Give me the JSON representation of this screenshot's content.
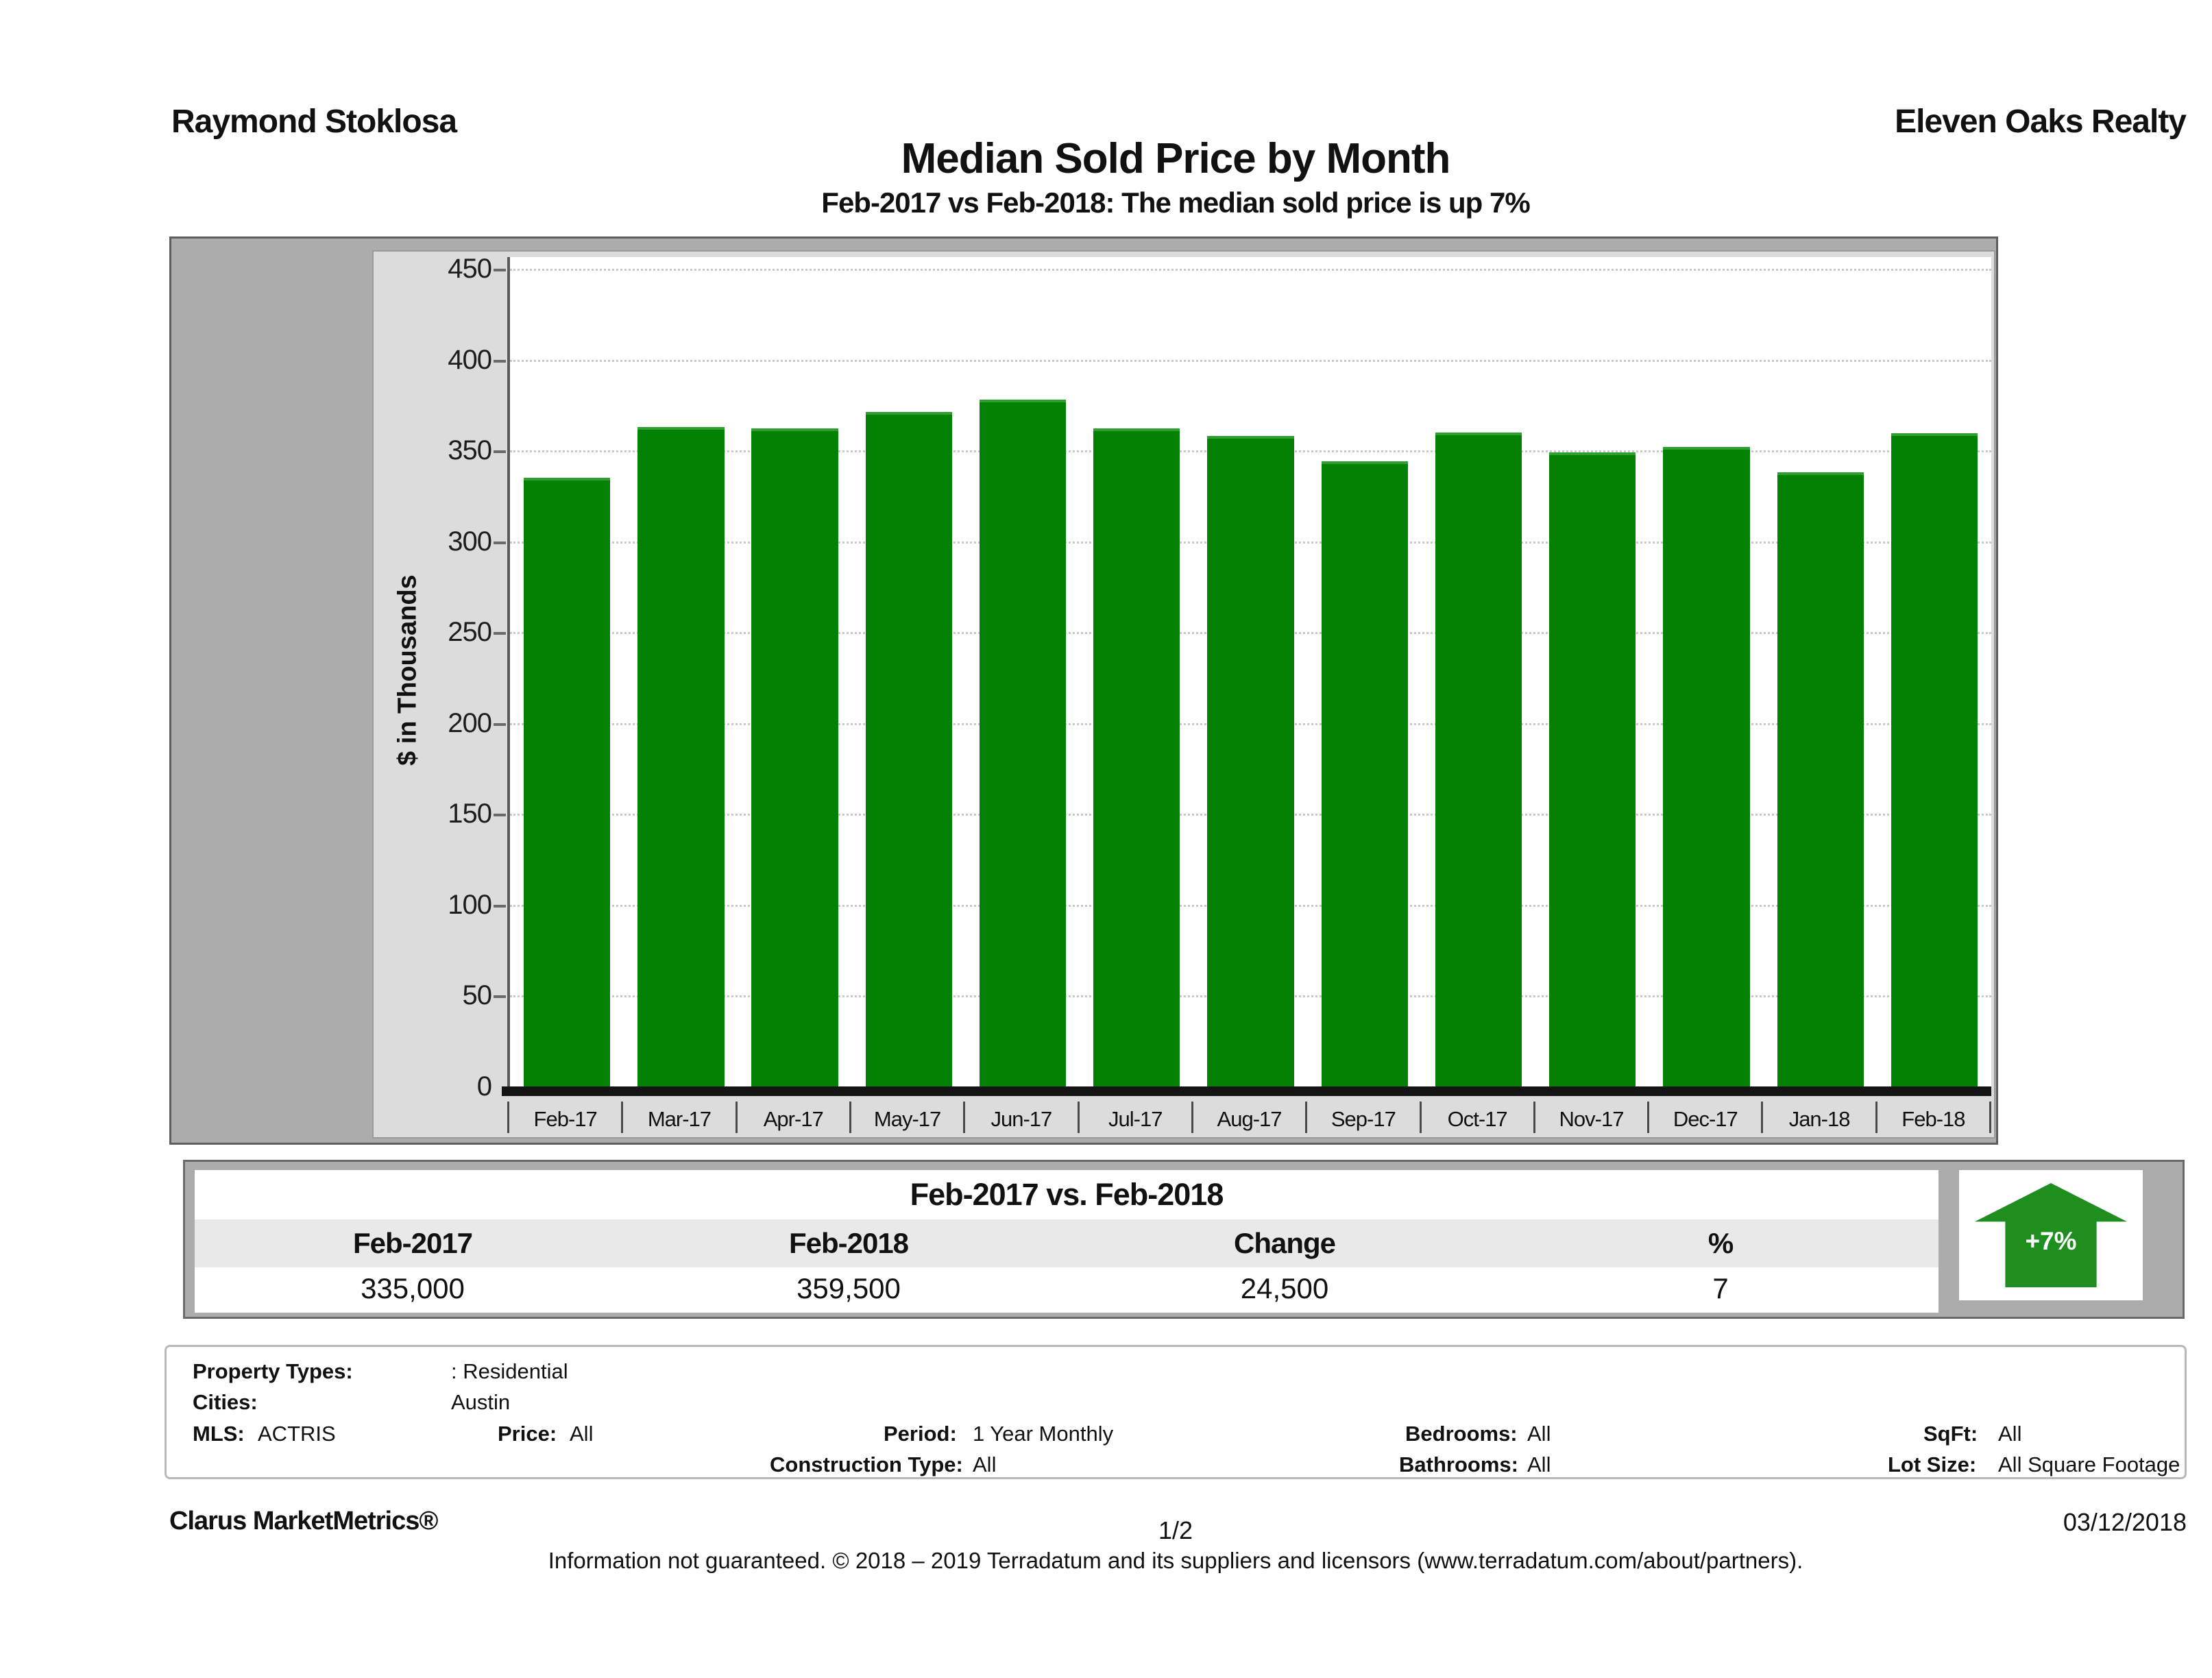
{
  "header": {
    "agent": "Raymond Stoklosa",
    "company": "Eleven Oaks Realty",
    "title": "Median Sold Price by Month",
    "subtitle": "Feb-2017 vs Feb-2018: The median sold price is up 7%"
  },
  "chart_data": {
    "type": "bar",
    "title": "Median Sold Price by Month",
    "subtitle": "Feb-2017 vs Feb-2018: The median sold price is up 7%",
    "ylabel": "$ in Thousands",
    "xlabel": "",
    "ylim": [
      0,
      450
    ],
    "yticks": [
      450,
      400,
      350,
      300,
      250,
      200,
      150,
      100,
      50,
      0
    ],
    "grid": "horizontal-dotted",
    "legend_position": "none",
    "bar_color": "#028102",
    "categories": [
      "Feb-17",
      "Mar-17",
      "Apr-17",
      "May-17",
      "Jun-17",
      "Jul-17",
      "Aug-17",
      "Sep-17",
      "Oct-17",
      "Nov-17",
      "Dec-17",
      "Jan-18",
      "Feb-18"
    ],
    "values": [
      335,
      363,
      362,
      371,
      378,
      362,
      358,
      344,
      360,
      349,
      352,
      338,
      359.5
    ],
    "units": "thousands of dollars"
  },
  "comparison": {
    "title": "Feb-2017 vs. Feb-2018",
    "headers": [
      "Feb-2017",
      "Feb-2018",
      "Change",
      "%"
    ],
    "values": [
      "335,000",
      "359,500",
      "24,500",
      "7"
    ],
    "badge_label": "+7%",
    "badge_color": "#1e8e1e"
  },
  "filters": {
    "property_types_label": "Property Types:",
    "property_types": ": Residential",
    "cities_label": "Cities:",
    "cities": "Austin",
    "mls_label": "MLS:",
    "mls": "ACTRIS",
    "price_label": "Price:",
    "price": "All",
    "period_label": "Period:",
    "period": "1 Year Monthly",
    "bedrooms_label": "Bedrooms:",
    "bedrooms": "All",
    "sqft_label": "SqFt:",
    "sqft": "All",
    "construction_label": "Construction Type:",
    "construction": "All",
    "bathrooms_label": "Bathrooms:",
    "bathrooms": "All",
    "lot_label": "Lot Size:",
    "lot": "All Square Footage"
  },
  "footer": {
    "brand": "Clarus MarketMetrics®",
    "page": "1/2",
    "date": "03/12/2018",
    "disclaimer": "Information not guaranteed. © 2018 – 2019 Terradatum and its suppliers and licensors (www.terradatum.com/about/partners)."
  }
}
